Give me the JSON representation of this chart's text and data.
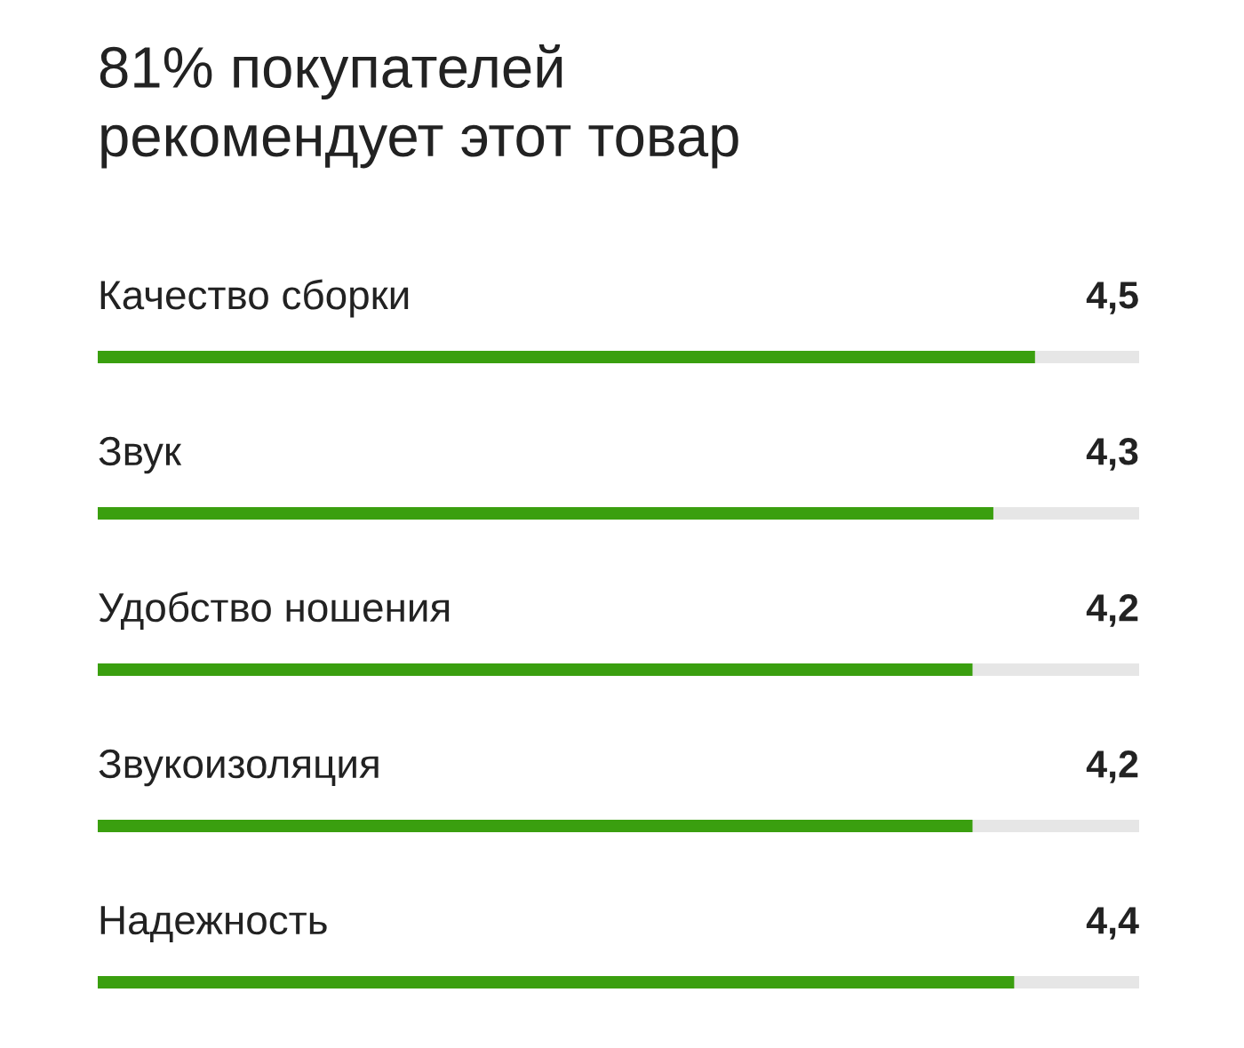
{
  "chart_data": {
    "type": "bar",
    "orientation": "horizontal",
    "title": "81% покупателей\nрекомендует этот товар",
    "categories": [
      "Качество сборки",
      "Звук",
      "Удобство ношения",
      "Звукоизоляция",
      "Надежность"
    ],
    "values": [
      4.5,
      4.3,
      4.2,
      4.2,
      4.4
    ],
    "value_labels": [
      "4,5",
      "4,3",
      "4,2",
      "4,2",
      "4,4"
    ],
    "color": "#3a9f0f",
    "xlim": [
      0,
      5
    ]
  }
}
